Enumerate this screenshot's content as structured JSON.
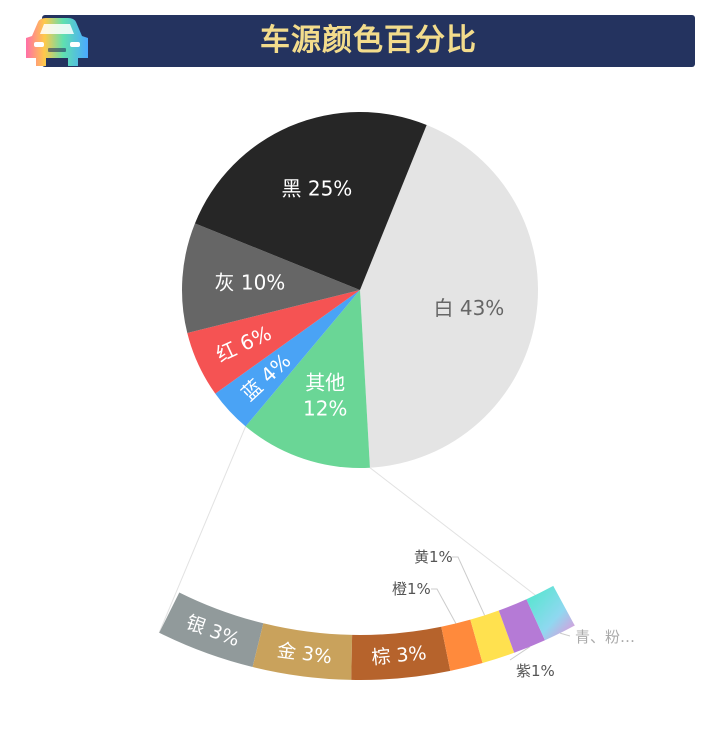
{
  "header": {
    "title": "车源颜色百分比"
  },
  "chart_data": [
    {
      "type": "pie",
      "slices": [
        {
          "label": "白",
          "value": 43,
          "text": "白 43%",
          "color": "#e4e4e4",
          "label_color": "#666666"
        },
        {
          "label": "其他",
          "value": 12,
          "text_lines": [
            "其他",
            "12%"
          ],
          "color": "#6ad696",
          "label_color": "#ffffff"
        },
        {
          "label": "蓝",
          "value": 4,
          "text": "蓝 4%",
          "color": "#4aa3f5",
          "label_color": "#ffffff"
        },
        {
          "label": "红",
          "value": 6,
          "text": "红 6%",
          "color": "#f55353",
          "label_color": "#ffffff"
        },
        {
          "label": "灰",
          "value": 10,
          "text": "灰 10%",
          "color": "#666666",
          "label_color": "#ffffff"
        },
        {
          "label": "黑",
          "value": 25,
          "text": "黑 25%",
          "color": "#262626",
          "label_color": "#ffffff"
        }
      ]
    },
    {
      "type": "bar",
      "orientation": "stacked-arc",
      "segments": [
        {
          "label": "银",
          "value": 3,
          "text": "银 3%",
          "color": "#919a9b",
          "inside": true
        },
        {
          "label": "金",
          "value": 3,
          "text": "金 3%",
          "color": "#c9a25c",
          "inside": true
        },
        {
          "label": "棕",
          "value": 3,
          "text": "棕 3%",
          "color": "#b6632c",
          "inside": true
        },
        {
          "label": "橙",
          "value": 1,
          "text": "橙1%",
          "color": "#ff8a3c",
          "inside": false
        },
        {
          "label": "黄",
          "value": 1,
          "text": "黄1%",
          "color": "#ffe14f",
          "inside": false
        },
        {
          "label": "紫",
          "value": 1,
          "text": "紫1%",
          "color": "#b57ad6",
          "inside": false
        },
        {
          "label": "青、粉…",
          "value": 1,
          "text": "青、粉…",
          "color": "gradient",
          "inside": false
        }
      ]
    }
  ]
}
